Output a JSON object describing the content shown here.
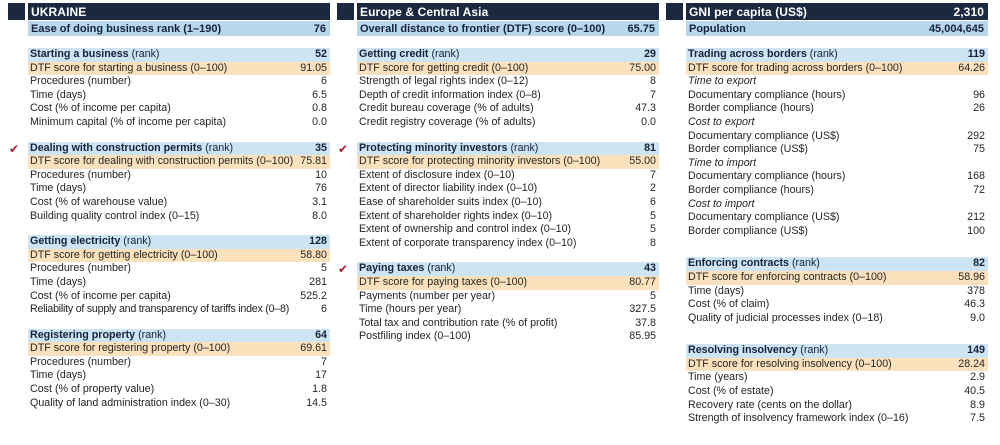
{
  "report": "Doing Business country profile",
  "check_icon": "✔",
  "colors": {
    "navy": "#1b2940",
    "light_blue": "#b7d7ea",
    "section_blue": "#cde4f2",
    "dtf_orange": "#fbe2bd",
    "check_red": "#a81e2d"
  },
  "header_columns": [
    {
      "title": "UKRAINE",
      "title_value": "",
      "sub_label": "Ease of doing business rank (1–190)",
      "sub_value": "76"
    },
    {
      "title": "Europe & Central Asia",
      "title_value": "",
      "sub_label": "Overall distance to frontier (DTF) score (0–100)",
      "sub_value": "65.75"
    },
    {
      "title": "GNI per capita (US$)",
      "title_value": "2,310",
      "sub_label": "Population",
      "sub_value": "45,004,645"
    }
  ],
  "columns": [
    {
      "sections": [
        {
          "name": "Starting a business",
          "suffix": "(rank)",
          "rank": "52",
          "checked": false,
          "rows": [
            {
              "label": "DTF score for starting a business (0–100)",
              "value": "91.05",
              "type": "dtf"
            },
            {
              "label": "Procedures (number)",
              "value": "6"
            },
            {
              "label": "Time (days)",
              "value": "6.5"
            },
            {
              "label": "Cost (% of income per capita)",
              "value": "0.8"
            },
            {
              "label": "Minimum capital (% of income per capita)",
              "value": "0.0"
            }
          ]
        },
        {
          "name": "Dealing with construction permits",
          "suffix": "(rank)",
          "rank": "35",
          "checked": true,
          "rows": [
            {
              "label": "DTF score for dealing with construction permits (0–100)",
              "value": "75.81",
              "type": "dtf"
            },
            {
              "label": "Procedures (number)",
              "value": "10"
            },
            {
              "label": "Time (days)",
              "value": "76"
            },
            {
              "label": "Cost (% of warehouse value)",
              "value": "3.1"
            },
            {
              "label": "Building quality control index (0–15)",
              "value": "8.0"
            }
          ]
        },
        {
          "name": "Getting electricity",
          "suffix": "(rank)",
          "rank": "128",
          "checked": false,
          "rows": [
            {
              "label": "DTF score for getting electricity (0–100)",
              "value": "58.80",
              "type": "dtf"
            },
            {
              "label": "Procedures (number)",
              "value": "5"
            },
            {
              "label": "Time (days)",
              "value": "281"
            },
            {
              "label": "Cost (% of income per capita)",
              "value": "525.2"
            },
            {
              "label": "Reliability of supply and transparency of tariffs index (0–8)",
              "value": "6",
              "tight": true
            }
          ]
        },
        {
          "name": "Registering property",
          "suffix": "(rank)",
          "rank": "64",
          "checked": false,
          "rows": [
            {
              "label": "DTF score for registering property (0–100)",
              "value": "69.61",
              "type": "dtf"
            },
            {
              "label": "Procedures (number)",
              "value": "7"
            },
            {
              "label": "Time (days)",
              "value": "17"
            },
            {
              "label": "Cost (% of property value)",
              "value": "1.8"
            },
            {
              "label": "Quality of land administration index (0–30)",
              "value": "14.5"
            }
          ]
        }
      ]
    },
    {
      "sections": [
        {
          "name": "Getting credit",
          "suffix": "(rank)",
          "rank": "29",
          "checked": false,
          "rows": [
            {
              "label": "DTF score for getting credit (0–100)",
              "value": "75.00",
              "type": "dtf"
            },
            {
              "label": "Strength of legal rights index (0–12)",
              "value": "8"
            },
            {
              "label": "Depth of credit information index (0–8)",
              "value": "7"
            },
            {
              "label": "Credit bureau coverage (% of adults)",
              "value": "47.3"
            },
            {
              "label": "Credit registry coverage (% of adults)",
              "value": "0.0"
            }
          ]
        },
        {
          "name": "Protecting minority investors",
          "suffix": "(rank)",
          "rank": "81",
          "checked": true,
          "rows": [
            {
              "label": "DTF score for protecting minority investors (0–100)",
              "value": "55.00",
              "type": "dtf"
            },
            {
              "label": "Extent of disclosure index (0–10)",
              "value": "7"
            },
            {
              "label": "Extent of director liability index (0–10)",
              "value": "2"
            },
            {
              "label": "Ease of shareholder suits index (0–10)",
              "value": "6"
            },
            {
              "label": "Extent of shareholder rights index (0–10)",
              "value": "5"
            },
            {
              "label": "Extent of ownership and control index (0–10)",
              "value": "5"
            },
            {
              "label": "Extent of corporate transparency index (0–10)",
              "value": "8"
            }
          ]
        },
        {
          "name": "Paying taxes",
          "suffix": "(rank)",
          "rank": "43",
          "checked": true,
          "rows": [
            {
              "label": "DTF score for paying taxes (0–100)",
              "value": "80.77",
              "type": "dtf"
            },
            {
              "label": "Payments (number per year)",
              "value": "5"
            },
            {
              "label": "Time (hours per year)",
              "value": "327.5"
            },
            {
              "label": "Total tax and contribution rate (% of profit)",
              "value": "37.8"
            },
            {
              "label": "Postfiling index (0–100)",
              "value": "85.95"
            }
          ]
        }
      ]
    },
    {
      "sections": [
        {
          "name": "Trading across borders",
          "suffix": "(rank)",
          "rank": "119",
          "checked": false,
          "rows": [
            {
              "label": "DTF score for trading across borders (0–100)",
              "value": "64.26",
              "type": "dtf"
            },
            {
              "label": "Time to export",
              "value": "",
              "type": "group"
            },
            {
              "label": "Documentary compliance (hours)",
              "value": "96"
            },
            {
              "label": "Border compliance (hours)",
              "value": "26"
            },
            {
              "label": "Cost to export",
              "value": "",
              "type": "group"
            },
            {
              "label": "Documentary compliance (US$)",
              "value": "292"
            },
            {
              "label": "Border compliance (US$)",
              "value": "75"
            },
            {
              "label": "Time to import",
              "value": "",
              "type": "group"
            },
            {
              "label": "Documentary compliance (hours)",
              "value": "168"
            },
            {
              "label": "Border compliance (hours)",
              "value": "72"
            },
            {
              "label": "Cost to import",
              "value": "",
              "type": "group"
            },
            {
              "label": "Documentary compliance (US$)",
              "value": "212"
            },
            {
              "label": "Border compliance (US$)",
              "value": "100"
            }
          ]
        },
        {
          "name": "Enforcing contracts",
          "suffix": "(rank)",
          "rank": "82",
          "checked": false,
          "rows": [
            {
              "label": "DTF score for enforcing contracts (0–100)",
              "value": "58.96",
              "type": "dtf"
            },
            {
              "label": "Time (days)",
              "value": "378"
            },
            {
              "label": "Cost (% of claim)",
              "value": "46.3"
            },
            {
              "label": "Quality of judicial processes index (0–18)",
              "value": "9.0"
            }
          ]
        },
        {
          "name": "Resolving insolvency",
          "suffix": "(rank)",
          "rank": "149",
          "checked": false,
          "rows": [
            {
              "label": "DTF score for resolving insolvency (0–100)",
              "value": "28.24",
              "type": "dtf"
            },
            {
              "label": "Time (years)",
              "value": "2.9"
            },
            {
              "label": "Cost (% of estate)",
              "value": "40.5"
            },
            {
              "label": "Recovery rate (cents on the dollar)",
              "value": "8.9"
            },
            {
              "label": "Strength of insolvency framework index (0–16)",
              "value": "7.5"
            }
          ]
        }
      ]
    }
  ]
}
